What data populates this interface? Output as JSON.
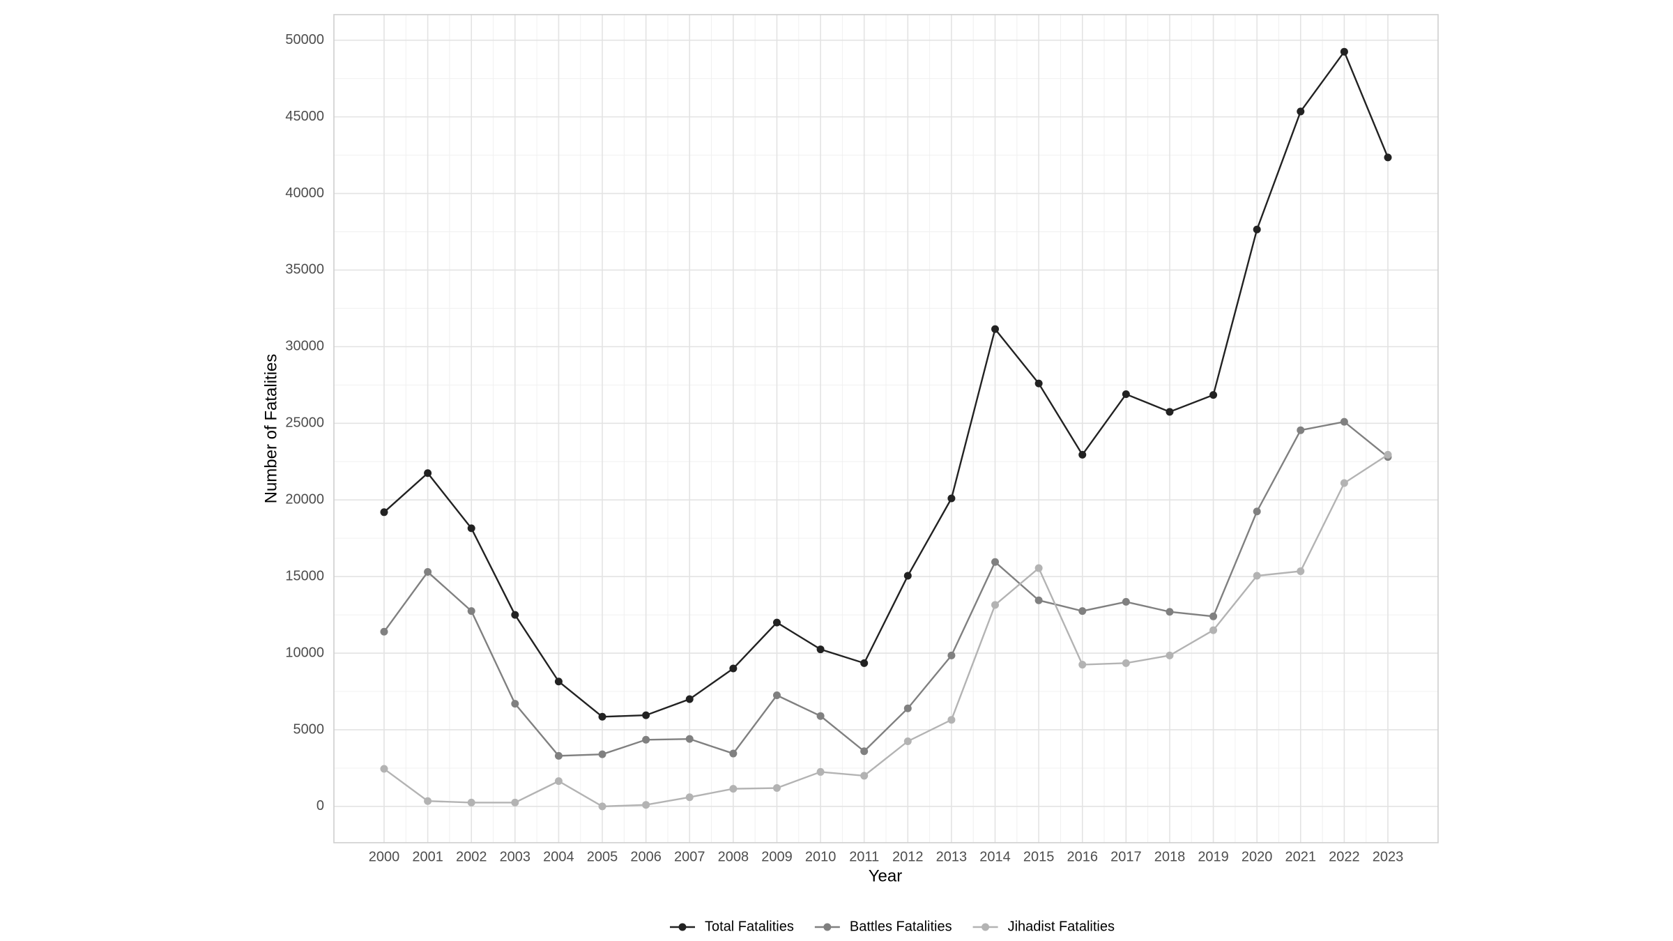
{
  "chart_data": {
    "type": "line",
    "x_label": "Year",
    "y_label": "Number of Fatalities",
    "x": [
      2000,
      2001,
      2002,
      2003,
      2004,
      2005,
      2006,
      2007,
      2008,
      2009,
      2010,
      2011,
      2012,
      2013,
      2014,
      2015,
      2016,
      2017,
      2018,
      2019,
      2020,
      2021,
      2022,
      2023
    ],
    "series": [
      {
        "name": "Total Fatalities",
        "color": "#222222",
        "values": [
          19200,
          21750,
          18150,
          12500,
          8150,
          5850,
          5950,
          7000,
          9000,
          12000,
          10250,
          9350,
          15050,
          20100,
          31150,
          27600,
          22950,
          26900,
          25750,
          26850,
          37650,
          45350,
          49250,
          42350
        ]
      },
      {
        "name": "Battles Fatalities",
        "color": "#808080",
        "values": [
          11400,
          15300,
          12750,
          6700,
          3300,
          3400,
          4350,
          4400,
          3450,
          7250,
          5900,
          3600,
          6400,
          9850,
          15950,
          13450,
          12750,
          13350,
          12700,
          12400,
          19250,
          24550,
          25100,
          22800
        ]
      },
      {
        "name": "Jihadist Fatalities",
        "color": "#b3b3b3",
        "values": [
          2450,
          350,
          250,
          250,
          1650,
          0,
          100,
          600,
          1150,
          1200,
          2250,
          2000,
          4250,
          5650,
          13150,
          15550,
          9250,
          9350,
          9850,
          11500,
          15050,
          15350,
          21100,
          22950
        ]
      }
    ],
    "xlim": [
      1998.85,
      2024.15
    ],
    "ylim": [
      -2370,
      51670
    ],
    "xticks": [
      2000,
      2001,
      2002,
      2003,
      2004,
      2005,
      2006,
      2007,
      2008,
      2009,
      2010,
      2011,
      2012,
      2013,
      2014,
      2015,
      2016,
      2017,
      2018,
      2019,
      2020,
      2021,
      2022,
      2023
    ],
    "yticks": [
      0,
      5000,
      10000,
      15000,
      20000,
      25000,
      30000,
      35000,
      40000,
      45000,
      50000
    ],
    "grid": true,
    "legend": "bottom"
  }
}
